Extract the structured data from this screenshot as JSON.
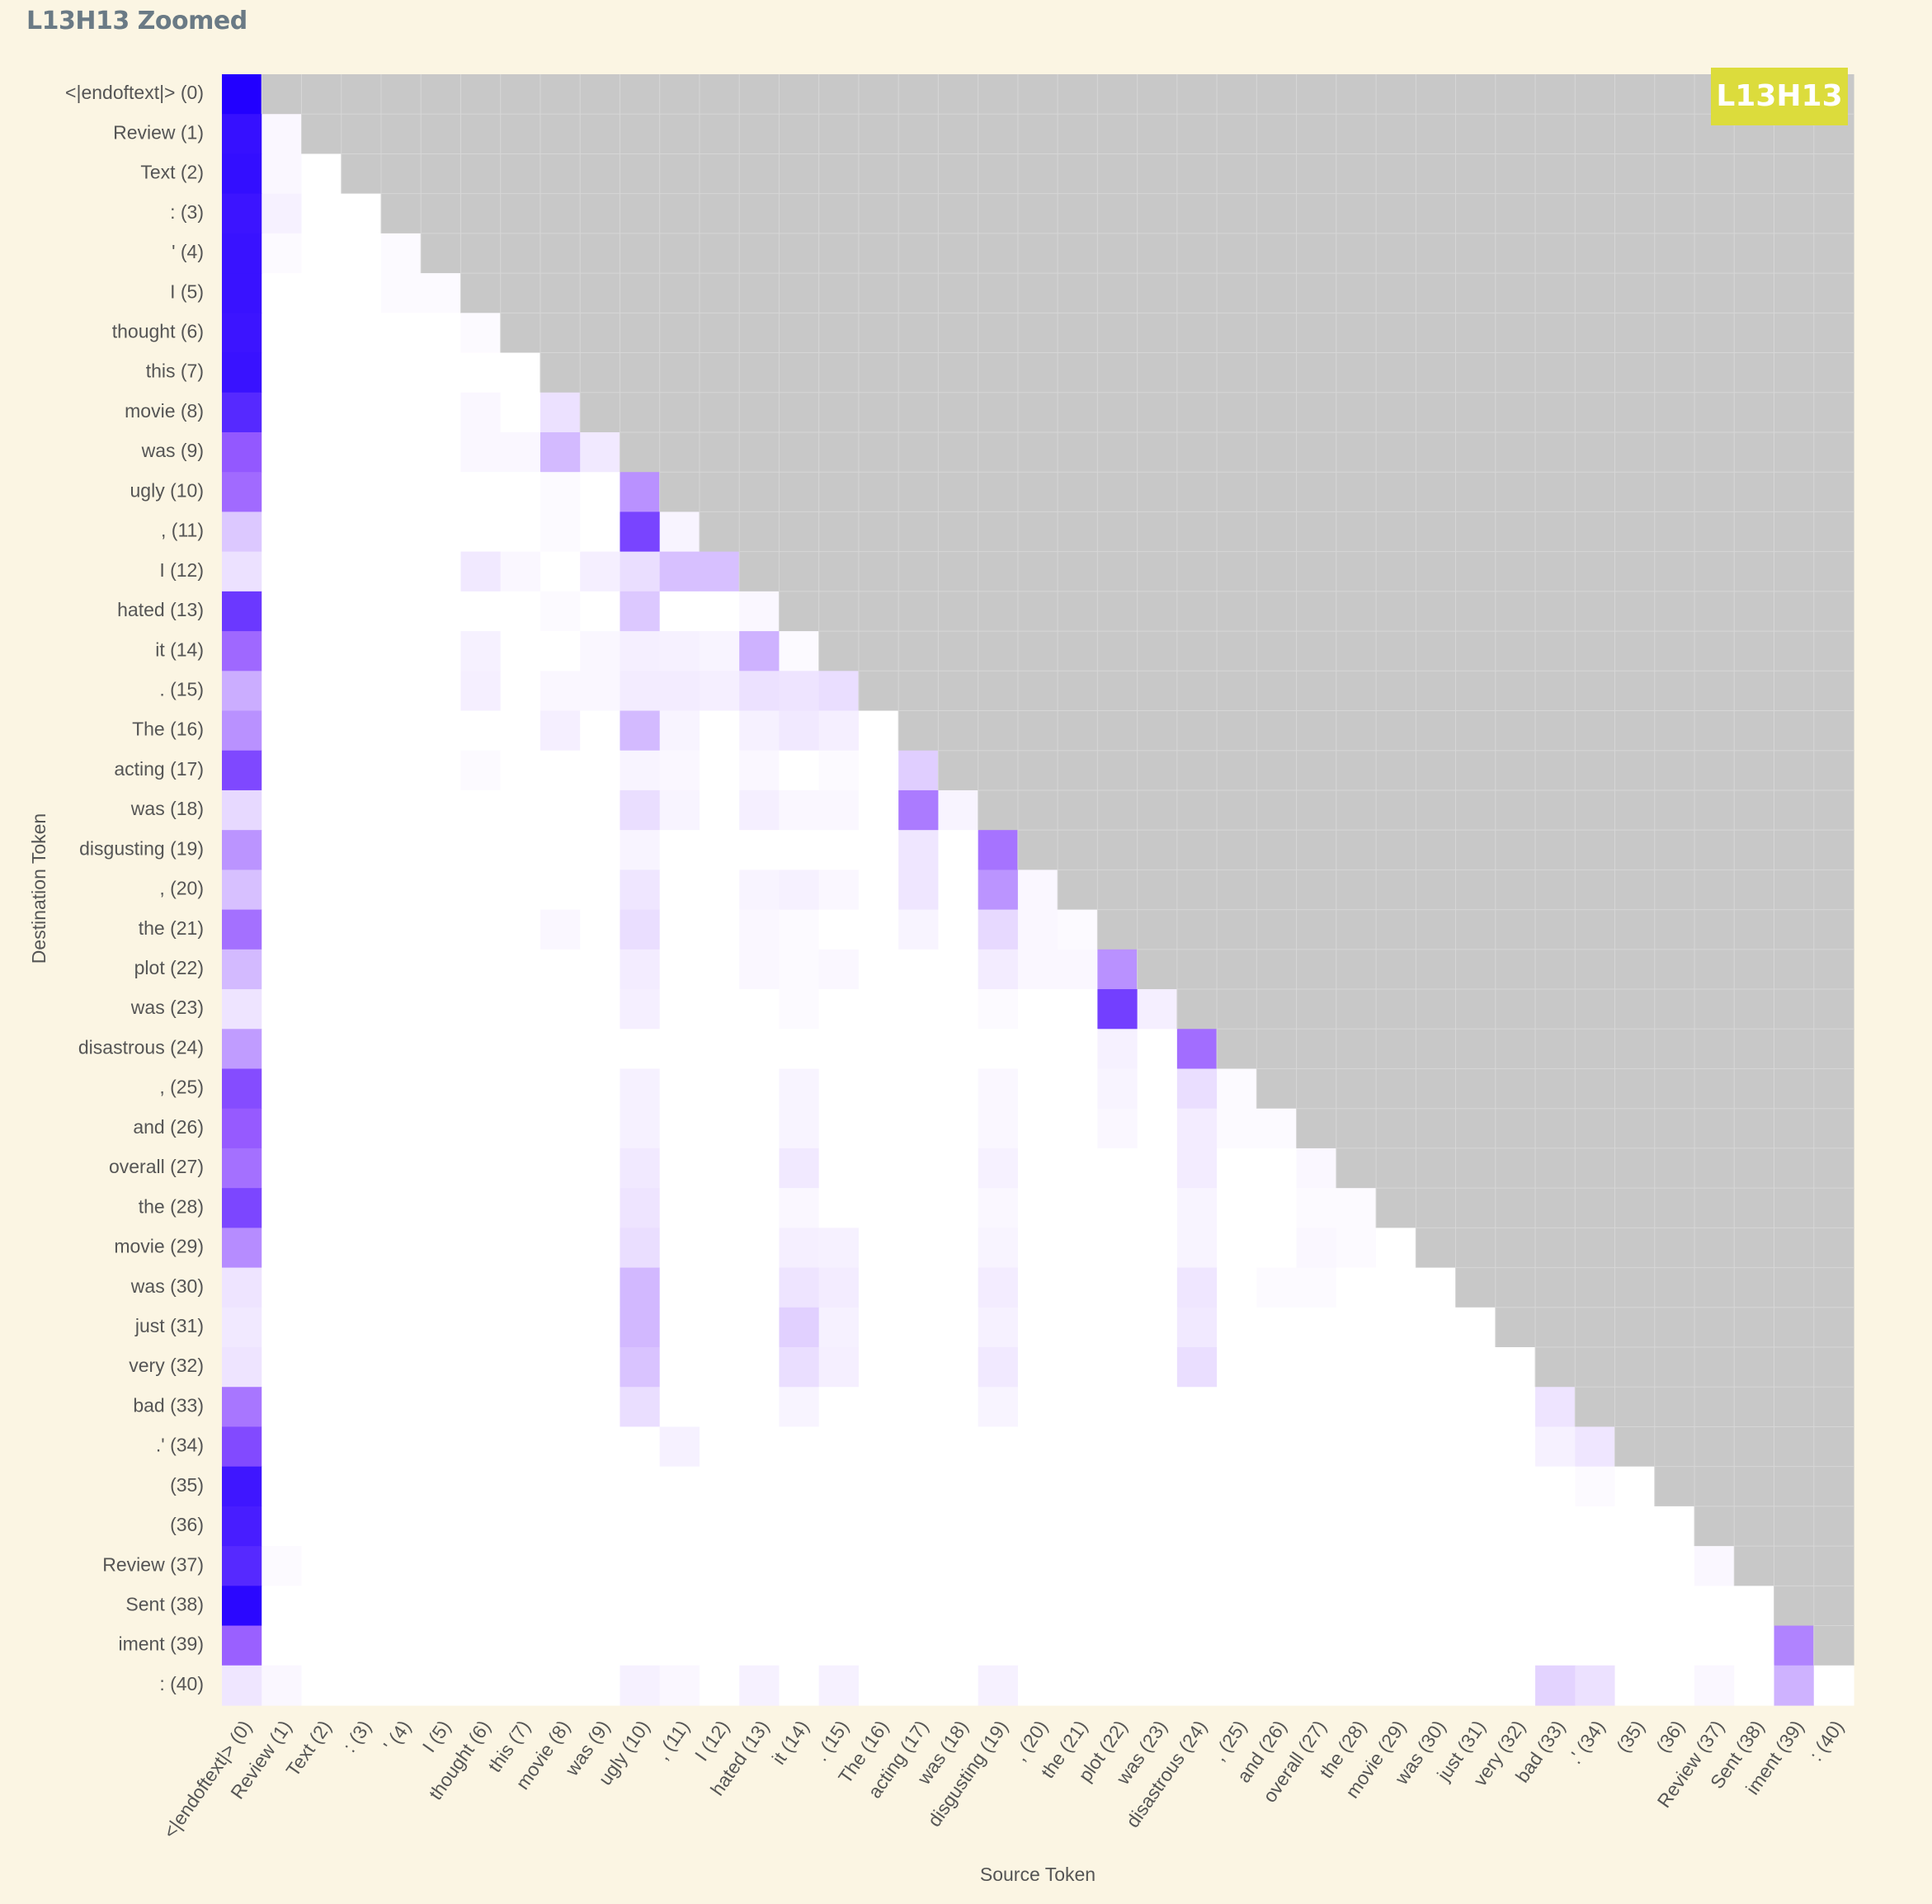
{
  "page_title": "L13H13 Zoomed",
  "chart_data": {
    "type": "heatmap",
    "head_label": "L13H13",
    "xlabel": "Source Token",
    "ylabel": "Destination Token",
    "tokens": [
      "<|endoftext|> (0)",
      "Review (1)",
      "Text (2)",
      ": (3)",
      "' (4)",
      "I (5)",
      "thought (6)",
      "this (7)",
      "movie (8)",
      "was (9)",
      "ugly (10)",
      ", (11)",
      "I (12)",
      "hated (13)",
      "it (14)",
      ". (15)",
      "The (16)",
      "acting (17)",
      "was (18)",
      "disgusting (19)",
      ", (20)",
      "the (21)",
      "plot (22)",
      "was (23)",
      "disastrous (24)",
      ", (25)",
      "and (26)",
      "overall (27)",
      "the (28)",
      "movie (29)",
      "was (30)",
      "just (31)",
      "very (32)",
      "bad (33)",
      ".' (34)",
      "(35)",
      "(36)",
      "Review (37)",
      "Sent (38)",
      "iment (39)",
      ": (40)"
    ],
    "masked_color": "#c8c8c8",
    "low_color": "#ffffff",
    "high_color": "#2200ff",
    "value_range": [
      0,
      1
    ],
    "sparse_values": [
      [
        0,
        0,
        1.0
      ],
      [
        1,
        0,
        0.93
      ],
      [
        1,
        1,
        0.03
      ],
      [
        2,
        0,
        0.94
      ],
      [
        2,
        1,
        0.03
      ],
      [
        3,
        0,
        0.91
      ],
      [
        3,
        1,
        0.05
      ],
      [
        4,
        0,
        0.92
      ],
      [
        4,
        1,
        0.02
      ],
      [
        4,
        4,
        0.02
      ],
      [
        5,
        0,
        0.92
      ],
      [
        5,
        4,
        0.02
      ],
      [
        5,
        5,
        0.02
      ],
      [
        6,
        0,
        0.91
      ],
      [
        6,
        6,
        0.02
      ],
      [
        7,
        0,
        0.92
      ],
      [
        8,
        0,
        0.82
      ],
      [
        8,
        6,
        0.03
      ],
      [
        8,
        8,
        0.11
      ],
      [
        9,
        0,
        0.61
      ],
      [
        9,
        6,
        0.03
      ],
      [
        9,
        7,
        0.03
      ],
      [
        9,
        8,
        0.25
      ],
      [
        9,
        9,
        0.08
      ],
      [
        10,
        0,
        0.54
      ],
      [
        10,
        8,
        0.02
      ],
      [
        10,
        10,
        0.4
      ],
      [
        11,
        0,
        0.2
      ],
      [
        11,
        8,
        0.02
      ],
      [
        11,
        10,
        0.7
      ],
      [
        11,
        11,
        0.04
      ],
      [
        12,
        0,
        0.11
      ],
      [
        12,
        6,
        0.08
      ],
      [
        12,
        7,
        0.03
      ],
      [
        12,
        9,
        0.06
      ],
      [
        12,
        10,
        0.12
      ],
      [
        12,
        11,
        0.23
      ],
      [
        12,
        12,
        0.23
      ],
      [
        13,
        0,
        0.75
      ],
      [
        13,
        8,
        0.02
      ],
      [
        13,
        10,
        0.2
      ],
      [
        13,
        13,
        0.03
      ],
      [
        14,
        0,
        0.55
      ],
      [
        14,
        6,
        0.05
      ],
      [
        14,
        9,
        0.03
      ],
      [
        14,
        10,
        0.06
      ],
      [
        14,
        11,
        0.05
      ],
      [
        14,
        12,
        0.04
      ],
      [
        14,
        13,
        0.28
      ],
      [
        14,
        14,
        0.02
      ],
      [
        15,
        0,
        0.3
      ],
      [
        15,
        6,
        0.06
      ],
      [
        15,
        8,
        0.03
      ],
      [
        15,
        9,
        0.03
      ],
      [
        15,
        10,
        0.07
      ],
      [
        15,
        11,
        0.07
      ],
      [
        15,
        12,
        0.06
      ],
      [
        15,
        13,
        0.11
      ],
      [
        15,
        14,
        0.1
      ],
      [
        15,
        15,
        0.12
      ],
      [
        16,
        0,
        0.4
      ],
      [
        16,
        8,
        0.06
      ],
      [
        16,
        10,
        0.25
      ],
      [
        16,
        11,
        0.04
      ],
      [
        16,
        13,
        0.05
      ],
      [
        16,
        14,
        0.08
      ],
      [
        16,
        15,
        0.06
      ],
      [
        17,
        0,
        0.68
      ],
      [
        17,
        6,
        0.02
      ],
      [
        17,
        10,
        0.04
      ],
      [
        17,
        11,
        0.03
      ],
      [
        17,
        13,
        0.03
      ],
      [
        17,
        15,
        0.02
      ],
      [
        17,
        17,
        0.18
      ],
      [
        18,
        0,
        0.14
      ],
      [
        18,
        10,
        0.12
      ],
      [
        18,
        11,
        0.04
      ],
      [
        18,
        13,
        0.06
      ],
      [
        18,
        14,
        0.03
      ],
      [
        18,
        15,
        0.03
      ],
      [
        18,
        17,
        0.48
      ],
      [
        18,
        18,
        0.04
      ],
      [
        19,
        0,
        0.39
      ],
      [
        19,
        10,
        0.04
      ],
      [
        19,
        17,
        0.09
      ],
      [
        19,
        19,
        0.51
      ],
      [
        20,
        0,
        0.23
      ],
      [
        20,
        10,
        0.09
      ],
      [
        20,
        13,
        0.04
      ],
      [
        20,
        14,
        0.05
      ],
      [
        20,
        15,
        0.03
      ],
      [
        20,
        17,
        0.09
      ],
      [
        20,
        19,
        0.39
      ],
      [
        20,
        20,
        0.03
      ],
      [
        21,
        0,
        0.52
      ],
      [
        21,
        8,
        0.03
      ],
      [
        21,
        10,
        0.12
      ],
      [
        21,
        13,
        0.03
      ],
      [
        21,
        14,
        0.02
      ],
      [
        21,
        17,
        0.04
      ],
      [
        21,
        19,
        0.14
      ],
      [
        21,
        20,
        0.03
      ],
      [
        21,
        21,
        0.02
      ],
      [
        22,
        0,
        0.25
      ],
      [
        22,
        10,
        0.07
      ],
      [
        22,
        13,
        0.03
      ],
      [
        22,
        14,
        0.02
      ],
      [
        22,
        15,
        0.03
      ],
      [
        22,
        19,
        0.07
      ],
      [
        22,
        20,
        0.03
      ],
      [
        22,
        21,
        0.03
      ],
      [
        22,
        22,
        0.4
      ],
      [
        23,
        0,
        0.1
      ],
      [
        23,
        10,
        0.06
      ],
      [
        23,
        14,
        0.02
      ],
      [
        23,
        19,
        0.02
      ],
      [
        23,
        22,
        0.72
      ],
      [
        23,
        23,
        0.06
      ],
      [
        24,
        0,
        0.36
      ],
      [
        24,
        22,
        0.05
      ],
      [
        24,
        24,
        0.53
      ],
      [
        25,
        0,
        0.66
      ],
      [
        25,
        10,
        0.05
      ],
      [
        25,
        14,
        0.04
      ],
      [
        25,
        19,
        0.03
      ],
      [
        25,
        22,
        0.04
      ],
      [
        25,
        24,
        0.12
      ],
      [
        25,
        25,
        0.02
      ],
      [
        26,
        0,
        0.6
      ],
      [
        26,
        10,
        0.05
      ],
      [
        26,
        14,
        0.04
      ],
      [
        26,
        19,
        0.03
      ],
      [
        26,
        22,
        0.03
      ],
      [
        26,
        24,
        0.07
      ],
      [
        26,
        25,
        0.02
      ],
      [
        26,
        26,
        0.02
      ],
      [
        27,
        0,
        0.52
      ],
      [
        27,
        10,
        0.08
      ],
      [
        27,
        14,
        0.08
      ],
      [
        27,
        19,
        0.05
      ],
      [
        27,
        24,
        0.07
      ],
      [
        27,
        27,
        0.03
      ],
      [
        28,
        0,
        0.69
      ],
      [
        28,
        10,
        0.1
      ],
      [
        28,
        14,
        0.03
      ],
      [
        28,
        19,
        0.03
      ],
      [
        28,
        24,
        0.04
      ],
      [
        28,
        27,
        0.02
      ],
      [
        28,
        28,
        0.02
      ],
      [
        29,
        0,
        0.42
      ],
      [
        29,
        10,
        0.12
      ],
      [
        29,
        14,
        0.06
      ],
      [
        29,
        15,
        0.05
      ],
      [
        29,
        19,
        0.04
      ],
      [
        29,
        24,
        0.04
      ],
      [
        29,
        27,
        0.03
      ],
      [
        29,
        28,
        0.02
      ],
      [
        30,
        0,
        0.1
      ],
      [
        30,
        10,
        0.26
      ],
      [
        30,
        14,
        0.1
      ],
      [
        30,
        15,
        0.07
      ],
      [
        30,
        19,
        0.07
      ],
      [
        30,
        24,
        0.09
      ],
      [
        30,
        26,
        0.02
      ],
      [
        30,
        27,
        0.02
      ],
      [
        31,
        0,
        0.08
      ],
      [
        31,
        10,
        0.26
      ],
      [
        31,
        14,
        0.17
      ],
      [
        31,
        15,
        0.05
      ],
      [
        31,
        19,
        0.05
      ],
      [
        31,
        24,
        0.08
      ],
      [
        32,
        0,
        0.1
      ],
      [
        32,
        10,
        0.22
      ],
      [
        32,
        14,
        0.12
      ],
      [
        32,
        15,
        0.06
      ],
      [
        32,
        19,
        0.08
      ],
      [
        32,
        24,
        0.12
      ],
      [
        33,
        0,
        0.5
      ],
      [
        33,
        10,
        0.12
      ],
      [
        33,
        14,
        0.04
      ],
      [
        33,
        19,
        0.04
      ],
      [
        33,
        33,
        0.1
      ],
      [
        34,
        0,
        0.67
      ],
      [
        34,
        11,
        0.05
      ],
      [
        34,
        33,
        0.05
      ],
      [
        34,
        34,
        0.09
      ],
      [
        35,
        0,
        0.9
      ],
      [
        35,
        34,
        0.02
      ],
      [
        36,
        0,
        0.87
      ],
      [
        37,
        0,
        0.82
      ],
      [
        37,
        1,
        0.02
      ],
      [
        37,
        37,
        0.03
      ],
      [
        38,
        0,
        0.97
      ],
      [
        39,
        0,
        0.58
      ],
      [
        39,
        39,
        0.45
      ],
      [
        40,
        0,
        0.09
      ],
      [
        40,
        1,
        0.03
      ],
      [
        40,
        10,
        0.05
      ],
      [
        40,
        11,
        0.03
      ],
      [
        40,
        13,
        0.05
      ],
      [
        40,
        15,
        0.05
      ],
      [
        40,
        19,
        0.05
      ],
      [
        40,
        33,
        0.16
      ],
      [
        40,
        34,
        0.11
      ],
      [
        40,
        37,
        0.03
      ],
      [
        40,
        39,
        0.28
      ]
    ]
  }
}
